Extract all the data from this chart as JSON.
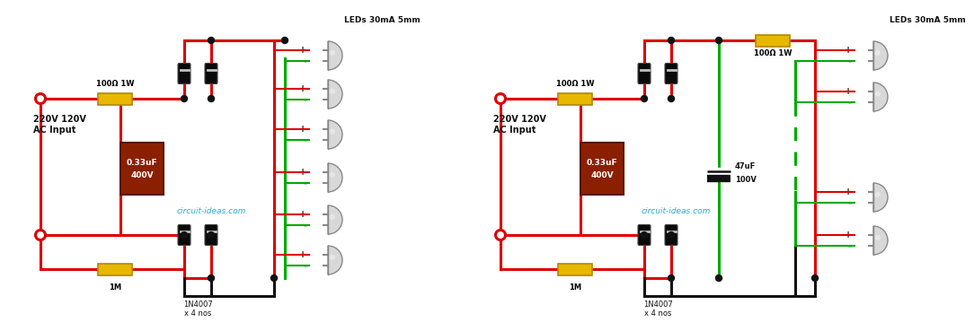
{
  "bg_color": "#ffffff",
  "watermark": "circuit-ideas.com",
  "watermark_color": "#29a9cc",
  "c1_res_top": "100Ω 1W",
  "c1_res_bot": "1M",
  "c1_diodes": "1N4007\nx 4 nos",
  "c1_leds": "LEDs 30mA 5mm",
  "c1_cap": "0.33uF\n400V",
  "c1_ac": "220V 120V\nAC Input",
  "c2_res_top": "100Ω 1W",
  "c2_res_bot": "1M",
  "c2_diodes": "1N4007\nx 4 nos",
  "c2_leds": "LEDs 30mA 5mm",
  "c2_cap": "0.33uF\n400V",
  "c2_cap2": "47uF\n100V",
  "c2_ac": "220V 120V\nAC Input",
  "red": "#dd0000",
  "green": "#00aa00",
  "black": "#111111",
  "yellow": "#e8b800",
  "dark_yellow": "#b08800",
  "brown": "#8B2000",
  "dark_brown": "#5a1500",
  "wire_lw": 2.2,
  "font_main": 7.0,
  "font_small": 6.0
}
